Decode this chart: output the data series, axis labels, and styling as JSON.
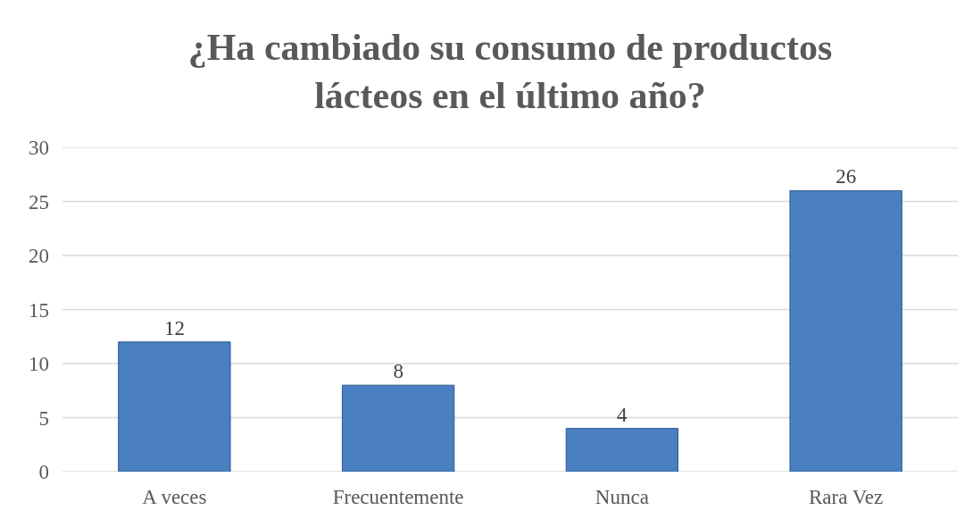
{
  "chart_data": {
    "type": "bar",
    "title": "¿Ha cambiado su consumo de productos\nlácteos en el último año?",
    "categories": [
      "A veces",
      "Frecuentemente",
      "Nunca",
      "Rara Vez"
    ],
    "values": [
      12,
      8,
      4,
      26
    ],
    "color": "#4a7fc1",
    "ylim": [
      0,
      30
    ],
    "yticks": [
      0,
      5,
      10,
      15,
      20,
      25,
      30
    ],
    "grid": "y",
    "data_labels": true
  }
}
